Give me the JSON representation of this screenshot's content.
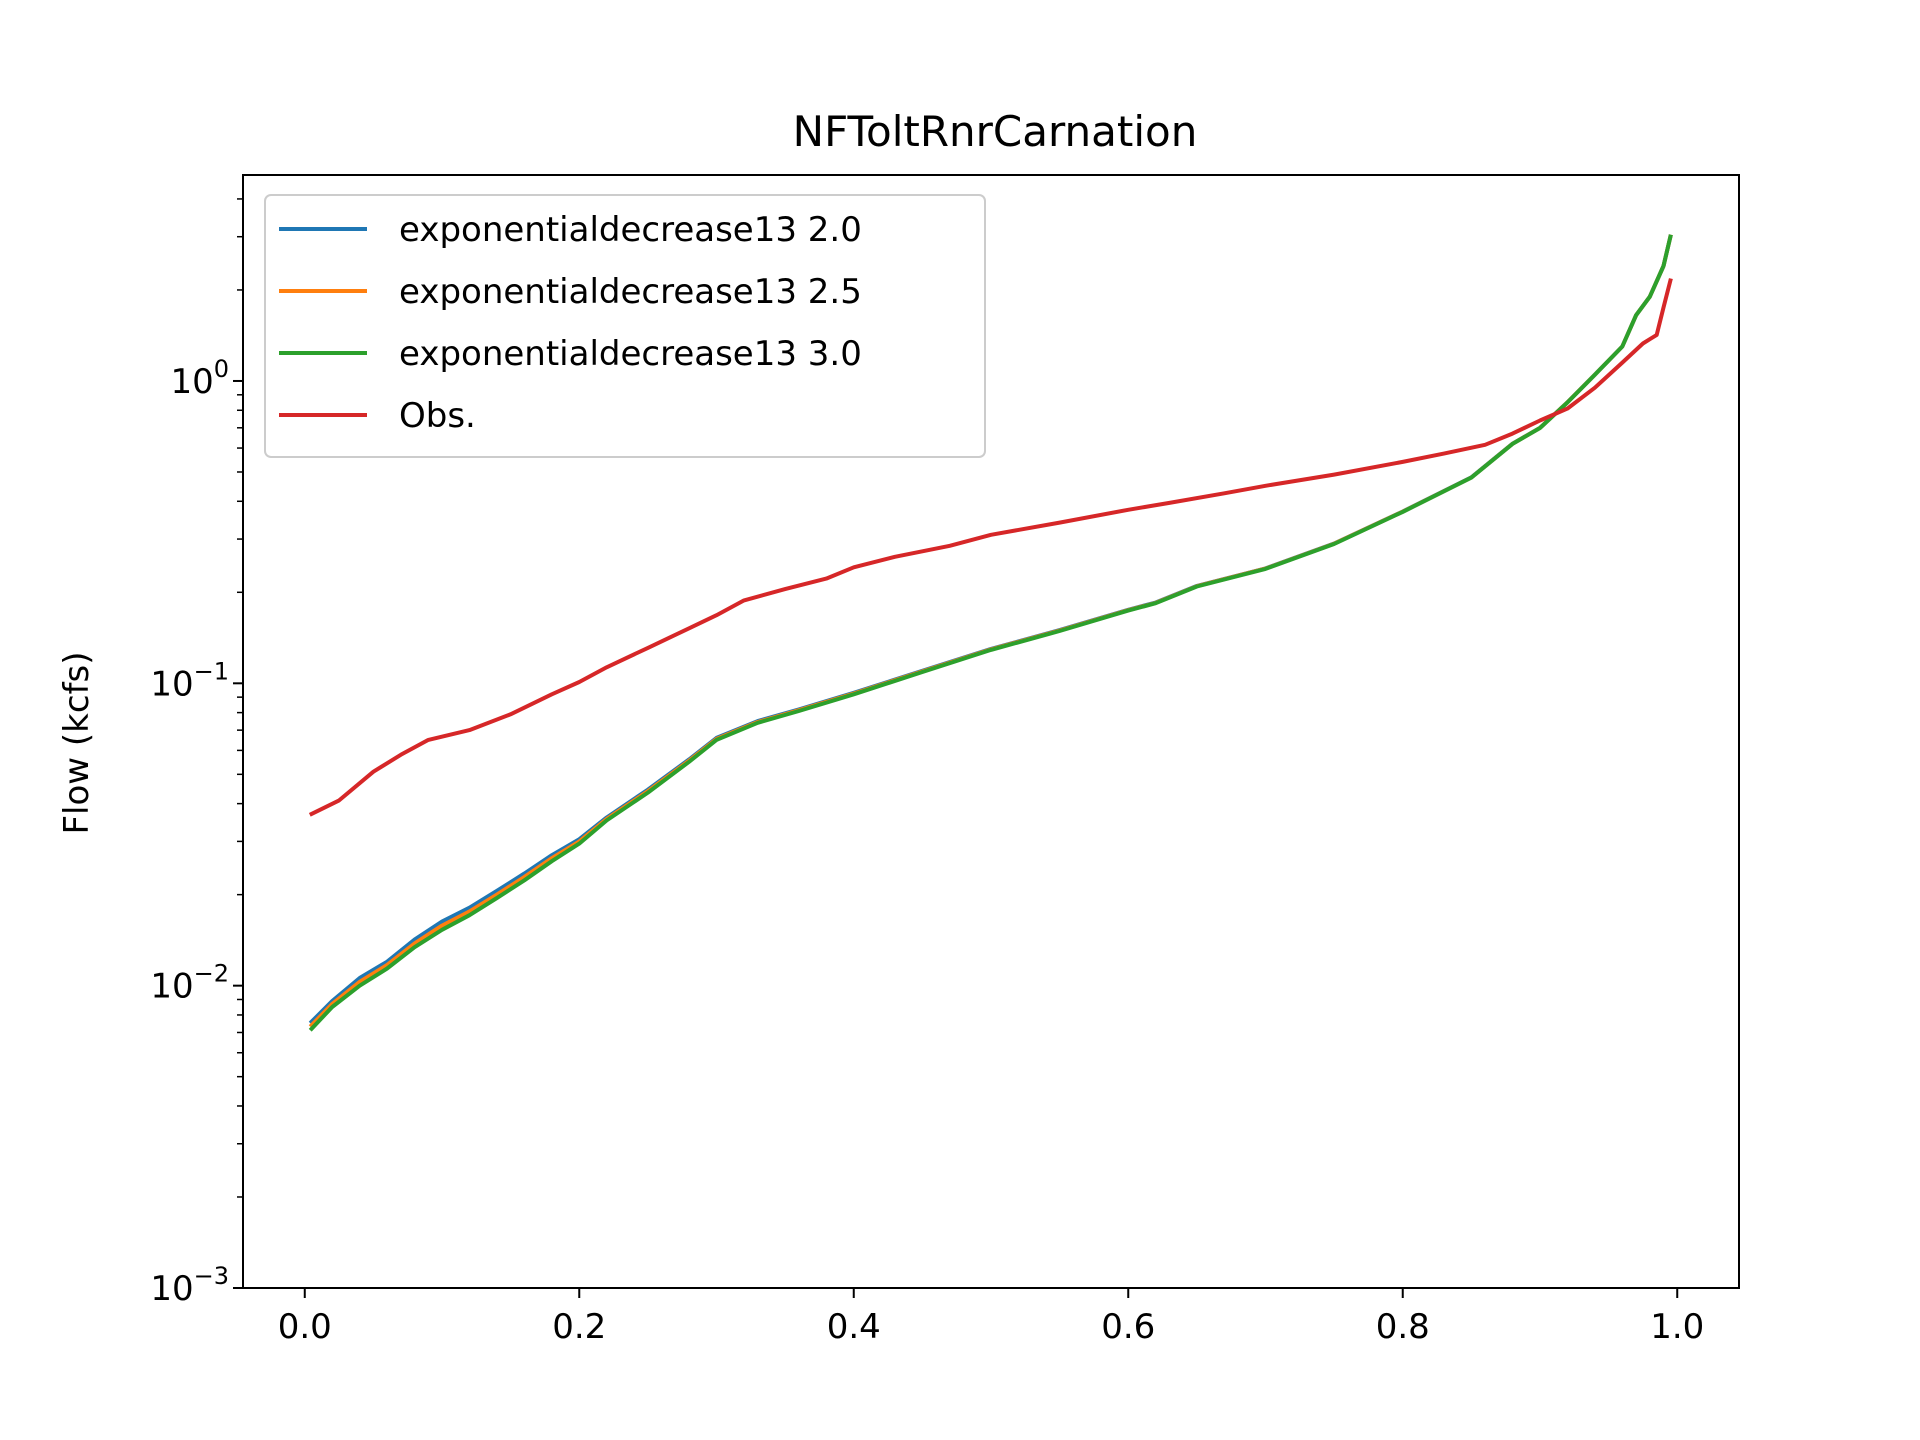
{
  "chart_data": {
    "type": "line",
    "title": "NFToltRnrCarnation",
    "xlabel": "",
    "ylabel": "Flow (kcfs)",
    "x_scale": "linear",
    "y_scale": "log",
    "xlim": [
      -0.045,
      1.045
    ],
    "ylim": [
      0.001,
      4.8
    ],
    "x_ticks": [
      {
        "value": 0.0,
        "label": "0.0"
      },
      {
        "value": 0.2,
        "label": "0.2"
      },
      {
        "value": 0.4,
        "label": "0.4"
      },
      {
        "value": 0.6,
        "label": "0.6"
      },
      {
        "value": 0.8,
        "label": "0.8"
      },
      {
        "value": 1.0,
        "label": "1.0"
      }
    ],
    "y_ticks": [
      {
        "value": 0.001,
        "base": "10",
        "exp": "−3"
      },
      {
        "value": 0.01,
        "base": "10",
        "exp": "−2"
      },
      {
        "value": 0.1,
        "base": "10",
        "exp": "−1"
      },
      {
        "value": 1,
        "base": "10",
        "exp": "0"
      }
    ],
    "grid": false,
    "legend_position": "top-left",
    "series": [
      {
        "name": "exponentialdecrease13 2.0",
        "color": "#1f77b4",
        "x": [
          0.005,
          0.02,
          0.04,
          0.06,
          0.08,
          0.1,
          0.12,
          0.14,
          0.16,
          0.18,
          0.2,
          0.22,
          0.25,
          0.28,
          0.3,
          0.33,
          0.36,
          0.4,
          0.45,
          0.5,
          0.55,
          0.6,
          0.62,
          0.65,
          0.7,
          0.75,
          0.8,
          0.85,
          0.88,
          0.9,
          0.92,
          0.94,
          0.96,
          0.97,
          0.98,
          0.99,
          0.995
        ],
        "y": [
          0.0076,
          0.0089,
          0.0106,
          0.012,
          0.0142,
          0.0163,
          0.0181,
          0.0206,
          0.0235,
          0.027,
          0.0305,
          0.036,
          0.0445,
          0.056,
          0.066,
          0.075,
          0.082,
          0.093,
          0.11,
          0.13,
          0.15,
          0.175,
          0.185,
          0.21,
          0.24,
          0.29,
          0.37,
          0.48,
          0.62,
          0.7,
          0.85,
          1.05,
          1.3,
          1.65,
          1.9,
          2.4,
          3.0
        ]
      },
      {
        "name": "exponentialdecrease13 2.5",
        "color": "#ff7f0e",
        "x": [
          0.005,
          0.02,
          0.04,
          0.06,
          0.08,
          0.1,
          0.12,
          0.14,
          0.16,
          0.18,
          0.2,
          0.22,
          0.25,
          0.28,
          0.3,
          0.33,
          0.36,
          0.4,
          0.45,
          0.5,
          0.55,
          0.6,
          0.62,
          0.65,
          0.7,
          0.75,
          0.8,
          0.85,
          0.88,
          0.9,
          0.92,
          0.94,
          0.96,
          0.97,
          0.98,
          0.99,
          0.995
        ],
        "y": [
          0.0074,
          0.0087,
          0.0103,
          0.0117,
          0.0138,
          0.0158,
          0.0176,
          0.02,
          0.0229,
          0.0264,
          0.03,
          0.0356,
          0.044,
          0.0555,
          0.0655,
          0.0745,
          0.0815,
          0.0925,
          0.1095,
          0.1295,
          0.1495,
          0.1745,
          0.1845,
          0.2095,
          0.2395,
          0.2895,
          0.3695,
          0.4795,
          0.6195,
          0.6995,
          0.8495,
          1.0495,
          1.3,
          1.65,
          1.9,
          2.4,
          3.0
        ]
      },
      {
        "name": "exponentialdecrease13 3.0",
        "color": "#2ca02c",
        "x": [
          0.005,
          0.02,
          0.04,
          0.06,
          0.08,
          0.1,
          0.12,
          0.14,
          0.16,
          0.18,
          0.2,
          0.22,
          0.25,
          0.28,
          0.3,
          0.33,
          0.36,
          0.4,
          0.45,
          0.5,
          0.55,
          0.6,
          0.62,
          0.65,
          0.7,
          0.75,
          0.8,
          0.85,
          0.88,
          0.9,
          0.92,
          0.94,
          0.96,
          0.97,
          0.98,
          0.99,
          0.995
        ],
        "y": [
          0.0072,
          0.0085,
          0.01,
          0.0114,
          0.0134,
          0.0153,
          0.0171,
          0.0195,
          0.0223,
          0.0258,
          0.0295,
          0.0352,
          0.0435,
          0.055,
          0.065,
          0.074,
          0.081,
          0.092,
          0.109,
          0.129,
          0.149,
          0.174,
          0.184,
          0.209,
          0.239,
          0.289,
          0.369,
          0.479,
          0.619,
          0.699,
          0.849,
          1.049,
          1.3,
          1.65,
          1.9,
          2.4,
          3.0
        ]
      },
      {
        "name": "Obs.",
        "color": "#d62728",
        "x": [
          0.005,
          0.025,
          0.05,
          0.07,
          0.09,
          0.12,
          0.15,
          0.18,
          0.2,
          0.22,
          0.25,
          0.28,
          0.3,
          0.32,
          0.35,
          0.38,
          0.4,
          0.43,
          0.47,
          0.5,
          0.55,
          0.6,
          0.63,
          0.67,
          0.7,
          0.75,
          0.8,
          0.83,
          0.86,
          0.88,
          0.9,
          0.92,
          0.94,
          0.96,
          0.975,
          0.985,
          0.99,
          0.995
        ],
        "y": [
          0.037,
          0.041,
          0.051,
          0.058,
          0.065,
          0.07,
          0.079,
          0.092,
          0.101,
          0.113,
          0.131,
          0.152,
          0.168,
          0.188,
          0.205,
          0.222,
          0.242,
          0.262,
          0.285,
          0.31,
          0.34,
          0.375,
          0.395,
          0.425,
          0.45,
          0.49,
          0.54,
          0.575,
          0.615,
          0.67,
          0.74,
          0.81,
          0.95,
          1.15,
          1.33,
          1.42,
          1.75,
          2.15
        ]
      }
    ]
  }
}
